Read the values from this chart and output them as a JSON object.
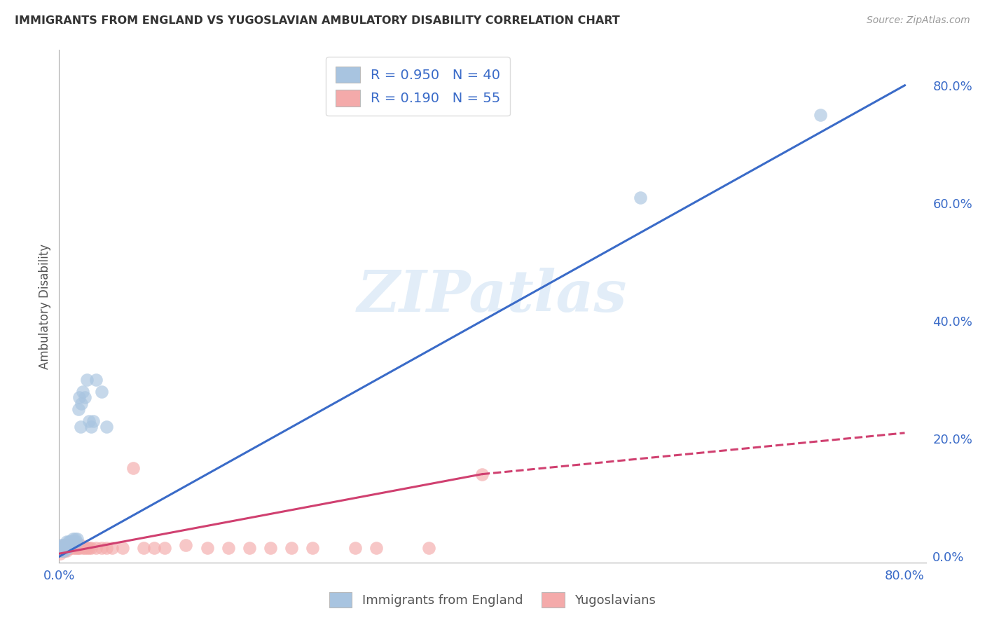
{
  "title": "IMMIGRANTS FROM ENGLAND VS YUGOSLAVIAN AMBULATORY DISABILITY CORRELATION CHART",
  "source": "Source: ZipAtlas.com",
  "ylabel": "Ambulatory Disability",
  "legend_r1": "R = 0.950",
  "legend_n1": "N = 40",
  "legend_r2": "R = 0.190",
  "legend_n2": "N = 55",
  "legend_label1": "Immigrants from England",
  "legend_label2": "Yugoslavians",
  "blue_color": "#A8C4E0",
  "blue_line_color": "#3A6BC8",
  "pink_color": "#F4AAAA",
  "pink_line_color": "#D04070",
  "watermark": "ZIPatlas",
  "blue_scatter_x": [
    0.001,
    0.002,
    0.002,
    0.003,
    0.003,
    0.004,
    0.004,
    0.005,
    0.005,
    0.006,
    0.006,
    0.007,
    0.007,
    0.008,
    0.008,
    0.009,
    0.01,
    0.01,
    0.011,
    0.012,
    0.013,
    0.014,
    0.015,
    0.016,
    0.017,
    0.018,
    0.019,
    0.02,
    0.021,
    0.022,
    0.024,
    0.026,
    0.028,
    0.03,
    0.032,
    0.035,
    0.04,
    0.045,
    0.55,
    0.72
  ],
  "blue_scatter_y": [
    0.01,
    0.015,
    0.02,
    0.01,
    0.015,
    0.015,
    0.02,
    0.01,
    0.015,
    0.02,
    0.015,
    0.02,
    0.025,
    0.015,
    0.02,
    0.025,
    0.02,
    0.025,
    0.025,
    0.025,
    0.03,
    0.025,
    0.03,
    0.025,
    0.03,
    0.25,
    0.27,
    0.22,
    0.26,
    0.28,
    0.27,
    0.3,
    0.23,
    0.22,
    0.23,
    0.3,
    0.28,
    0.22,
    0.61,
    0.75
  ],
  "pink_scatter_x": [
    0.001,
    0.001,
    0.002,
    0.002,
    0.003,
    0.003,
    0.004,
    0.004,
    0.005,
    0.005,
    0.006,
    0.006,
    0.007,
    0.007,
    0.008,
    0.008,
    0.009,
    0.009,
    0.01,
    0.01,
    0.011,
    0.012,
    0.013,
    0.014,
    0.015,
    0.016,
    0.017,
    0.018,
    0.019,
    0.02,
    0.022,
    0.024,
    0.026,
    0.028,
    0.03,
    0.035,
    0.04,
    0.045,
    0.05,
    0.06,
    0.07,
    0.08,
    0.09,
    0.1,
    0.12,
    0.14,
    0.16,
    0.18,
    0.2,
    0.22,
    0.24,
    0.28,
    0.3,
    0.35,
    0.4
  ],
  "pink_scatter_y": [
    0.005,
    0.01,
    0.01,
    0.015,
    0.01,
    0.015,
    0.01,
    0.015,
    0.01,
    0.02,
    0.015,
    0.02,
    0.01,
    0.015,
    0.02,
    0.015,
    0.015,
    0.02,
    0.015,
    0.02,
    0.015,
    0.02,
    0.015,
    0.02,
    0.015,
    0.015,
    0.02,
    0.015,
    0.015,
    0.02,
    0.015,
    0.015,
    0.015,
    0.015,
    0.015,
    0.015,
    0.015,
    0.015,
    0.015,
    0.015,
    0.15,
    0.015,
    0.015,
    0.015,
    0.02,
    0.015,
    0.015,
    0.015,
    0.015,
    0.015,
    0.015,
    0.015,
    0.015,
    0.015,
    0.14
  ],
  "blue_line_x": [
    0.0,
    0.8
  ],
  "blue_line_y": [
    0.0,
    0.8
  ],
  "pink_solid_line_x": [
    0.0,
    0.4
  ],
  "pink_solid_line_y": [
    0.005,
    0.14
  ],
  "pink_dashed_line_x": [
    0.4,
    0.8
  ],
  "pink_dashed_line_y": [
    0.14,
    0.21
  ],
  "xlim": [
    0.0,
    0.82
  ],
  "ylim": [
    -0.01,
    0.86
  ],
  "xtick_positions": [
    0.0,
    0.2,
    0.4,
    0.6,
    0.8
  ],
  "xtick_labels": [
    "0.0%",
    "",
    "",
    "",
    "80.0%"
  ],
  "ytick_positions": [
    0.0,
    0.2,
    0.4,
    0.6,
    0.8
  ],
  "ytick_labels": [
    "0.0%",
    "20.0%",
    "40.0%",
    "60.0%",
    "80.0%"
  ],
  "background_color": "#FFFFFF",
  "grid_color": "#CCCCCC"
}
